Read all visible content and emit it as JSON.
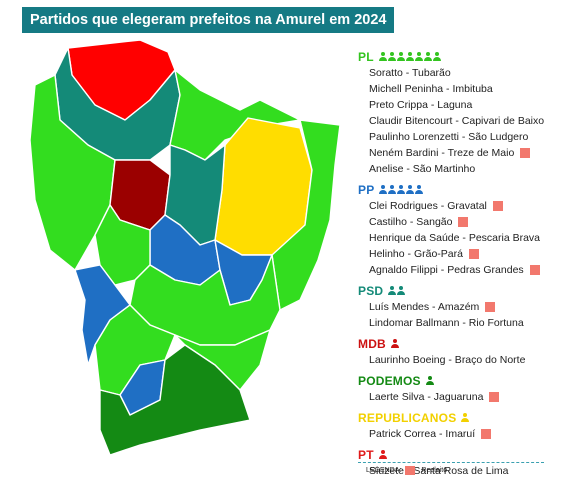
{
  "title": "Partidos que elegeram prefeitos na Amurel em 2024",
  "colors": {
    "reeleito": "#f2786d",
    "PL": "#33c41f",
    "PP": "#1f6fc4",
    "PSD": "#148a78",
    "MDB": "#cc1111",
    "PODEMOS": "#148a14",
    "REPUBLICANOS": "#f2d000",
    "PT": "#e01a1a"
  },
  "parties": [
    {
      "name": "PL",
      "count": 7,
      "mayors": [
        {
          "text": "Soratto - Tubarão",
          "reelected": false
        },
        {
          "text": "Michell Peninha - Imbituba",
          "reelected": false
        },
        {
          "text": "Preto Crippa - Laguna",
          "reelected": false
        },
        {
          "text": "Claudir Bitencourt - Capivari de Baixo",
          "reelected": false
        },
        {
          "text": "Paulinho Lorenzetti - São Ludgero",
          "reelected": false
        },
        {
          "text": "Neném Bardini - Treze de Maio",
          "reelected": true
        },
        {
          "text": "Anelise - São Martinho",
          "reelected": false
        }
      ]
    },
    {
      "name": "PP",
      "count": 5,
      "mayors": [
        {
          "text": "Clei Rodrigues - Gravatal",
          "reelected": true
        },
        {
          "text": "Castilho - Sangão",
          "reelected": true
        },
        {
          "text": "Henrique da Saúde - Pescaria Brava",
          "reelected": false
        },
        {
          "text": "Helinho -  Grão-Pará",
          "reelected": true
        },
        {
          "text": "Agnaldo Filippi - Pedras Grandes",
          "reelected": true
        }
      ]
    },
    {
      "name": "PSD",
      "count": 2,
      "mayors": [
        {
          "text": "Luís Mendes - Amazém",
          "reelected": true
        },
        {
          "text": "Lindomar Ballmann - Rio Fortuna",
          "reelected": false
        }
      ]
    },
    {
      "name": "MDB",
      "count": 1,
      "mayors": [
        {
          "text": "Laurinho Boeing - Braço do Norte",
          "reelected": false
        }
      ]
    },
    {
      "name": "PODEMOS",
      "count": 1,
      "mayors": [
        {
          "text": "Laerte Silva - Jaguaruna",
          "reelected": true
        }
      ]
    },
    {
      "name": "REPUBLICANOS",
      "count": 1,
      "mayors": [
        {
          "text": "Patrick Correa - Imaruí",
          "reelected": true
        }
      ]
    },
    {
      "name": "PT",
      "count": 1,
      "mayors": [
        {
          "text": "Siuzete - Santa Rosa de Lima",
          "reelected": false
        }
      ]
    }
  ],
  "legend": {
    "label": "LEGENDA:",
    "reelected_label": "Reeleito"
  }
}
